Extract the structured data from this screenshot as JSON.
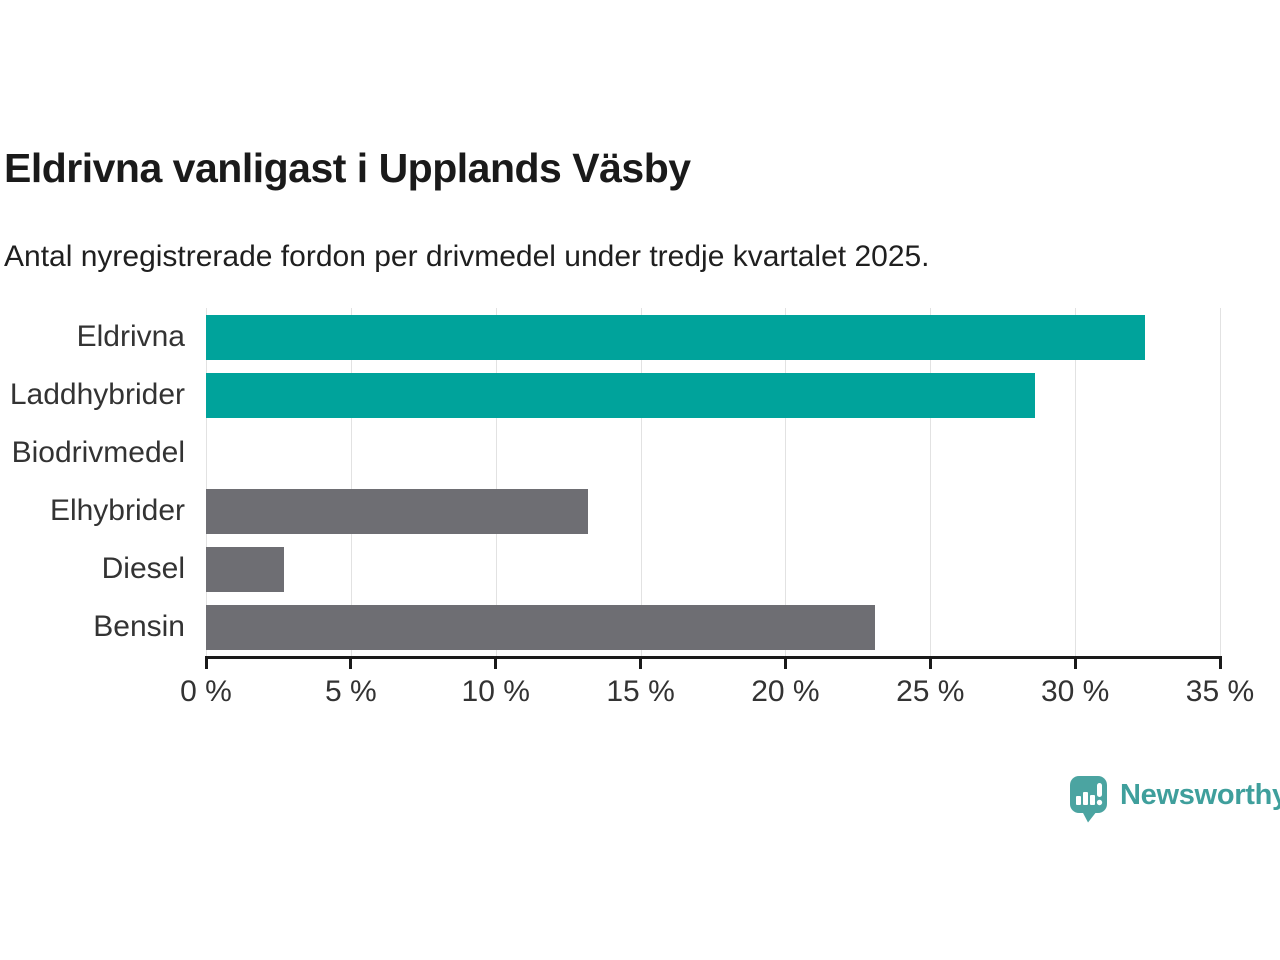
{
  "header": {
    "title": "Eldrivna vanligast i Upplands Väsby",
    "subtitle": "Antal nyregistrerade fordon per drivmedel under tredje kvartalet 2025."
  },
  "chart_data": {
    "type": "bar",
    "orientation": "horizontal",
    "title": "Eldrivna vanligast i Upplands Väsby",
    "subtitle": "Antal nyregistrerade fordon per drivmedel under tredje kvartalet 2025.",
    "categories": [
      "Eldrivna",
      "Laddhybrider",
      "Biodrivmedel",
      "Elhybrider",
      "Diesel",
      "Bensin"
    ],
    "values": [
      32.4,
      28.6,
      0,
      13.2,
      2.7,
      23.1
    ],
    "unit": "%",
    "bar_colors": [
      "#00a39b",
      "#00a39b",
      "#6e6e73",
      "#6e6e73",
      "#6e6e73",
      "#6e6e73"
    ],
    "xlim": [
      0,
      35
    ],
    "x_ticks": [
      0,
      5,
      10,
      15,
      20,
      25,
      30,
      35
    ],
    "x_tick_labels": [
      "0 %",
      "5 %",
      "10 %",
      "15 %",
      "20 %",
      "25 %",
      "30 %",
      "35 %"
    ],
    "grid": "vertical-gridlines-on",
    "legend": "none",
    "colors": {
      "highlight": "#00a39b",
      "default": "#6e6e73",
      "gridline": "#e2e2e2",
      "axis": "#1a1a1a",
      "label_text": "#333333"
    }
  },
  "branding": {
    "name": "Newsworthy",
    "text_color": "#3f9f9c",
    "icon": "newsworthy-speech-bubble-bar-chart-icon",
    "icon_color": "#4ba4a1"
  }
}
